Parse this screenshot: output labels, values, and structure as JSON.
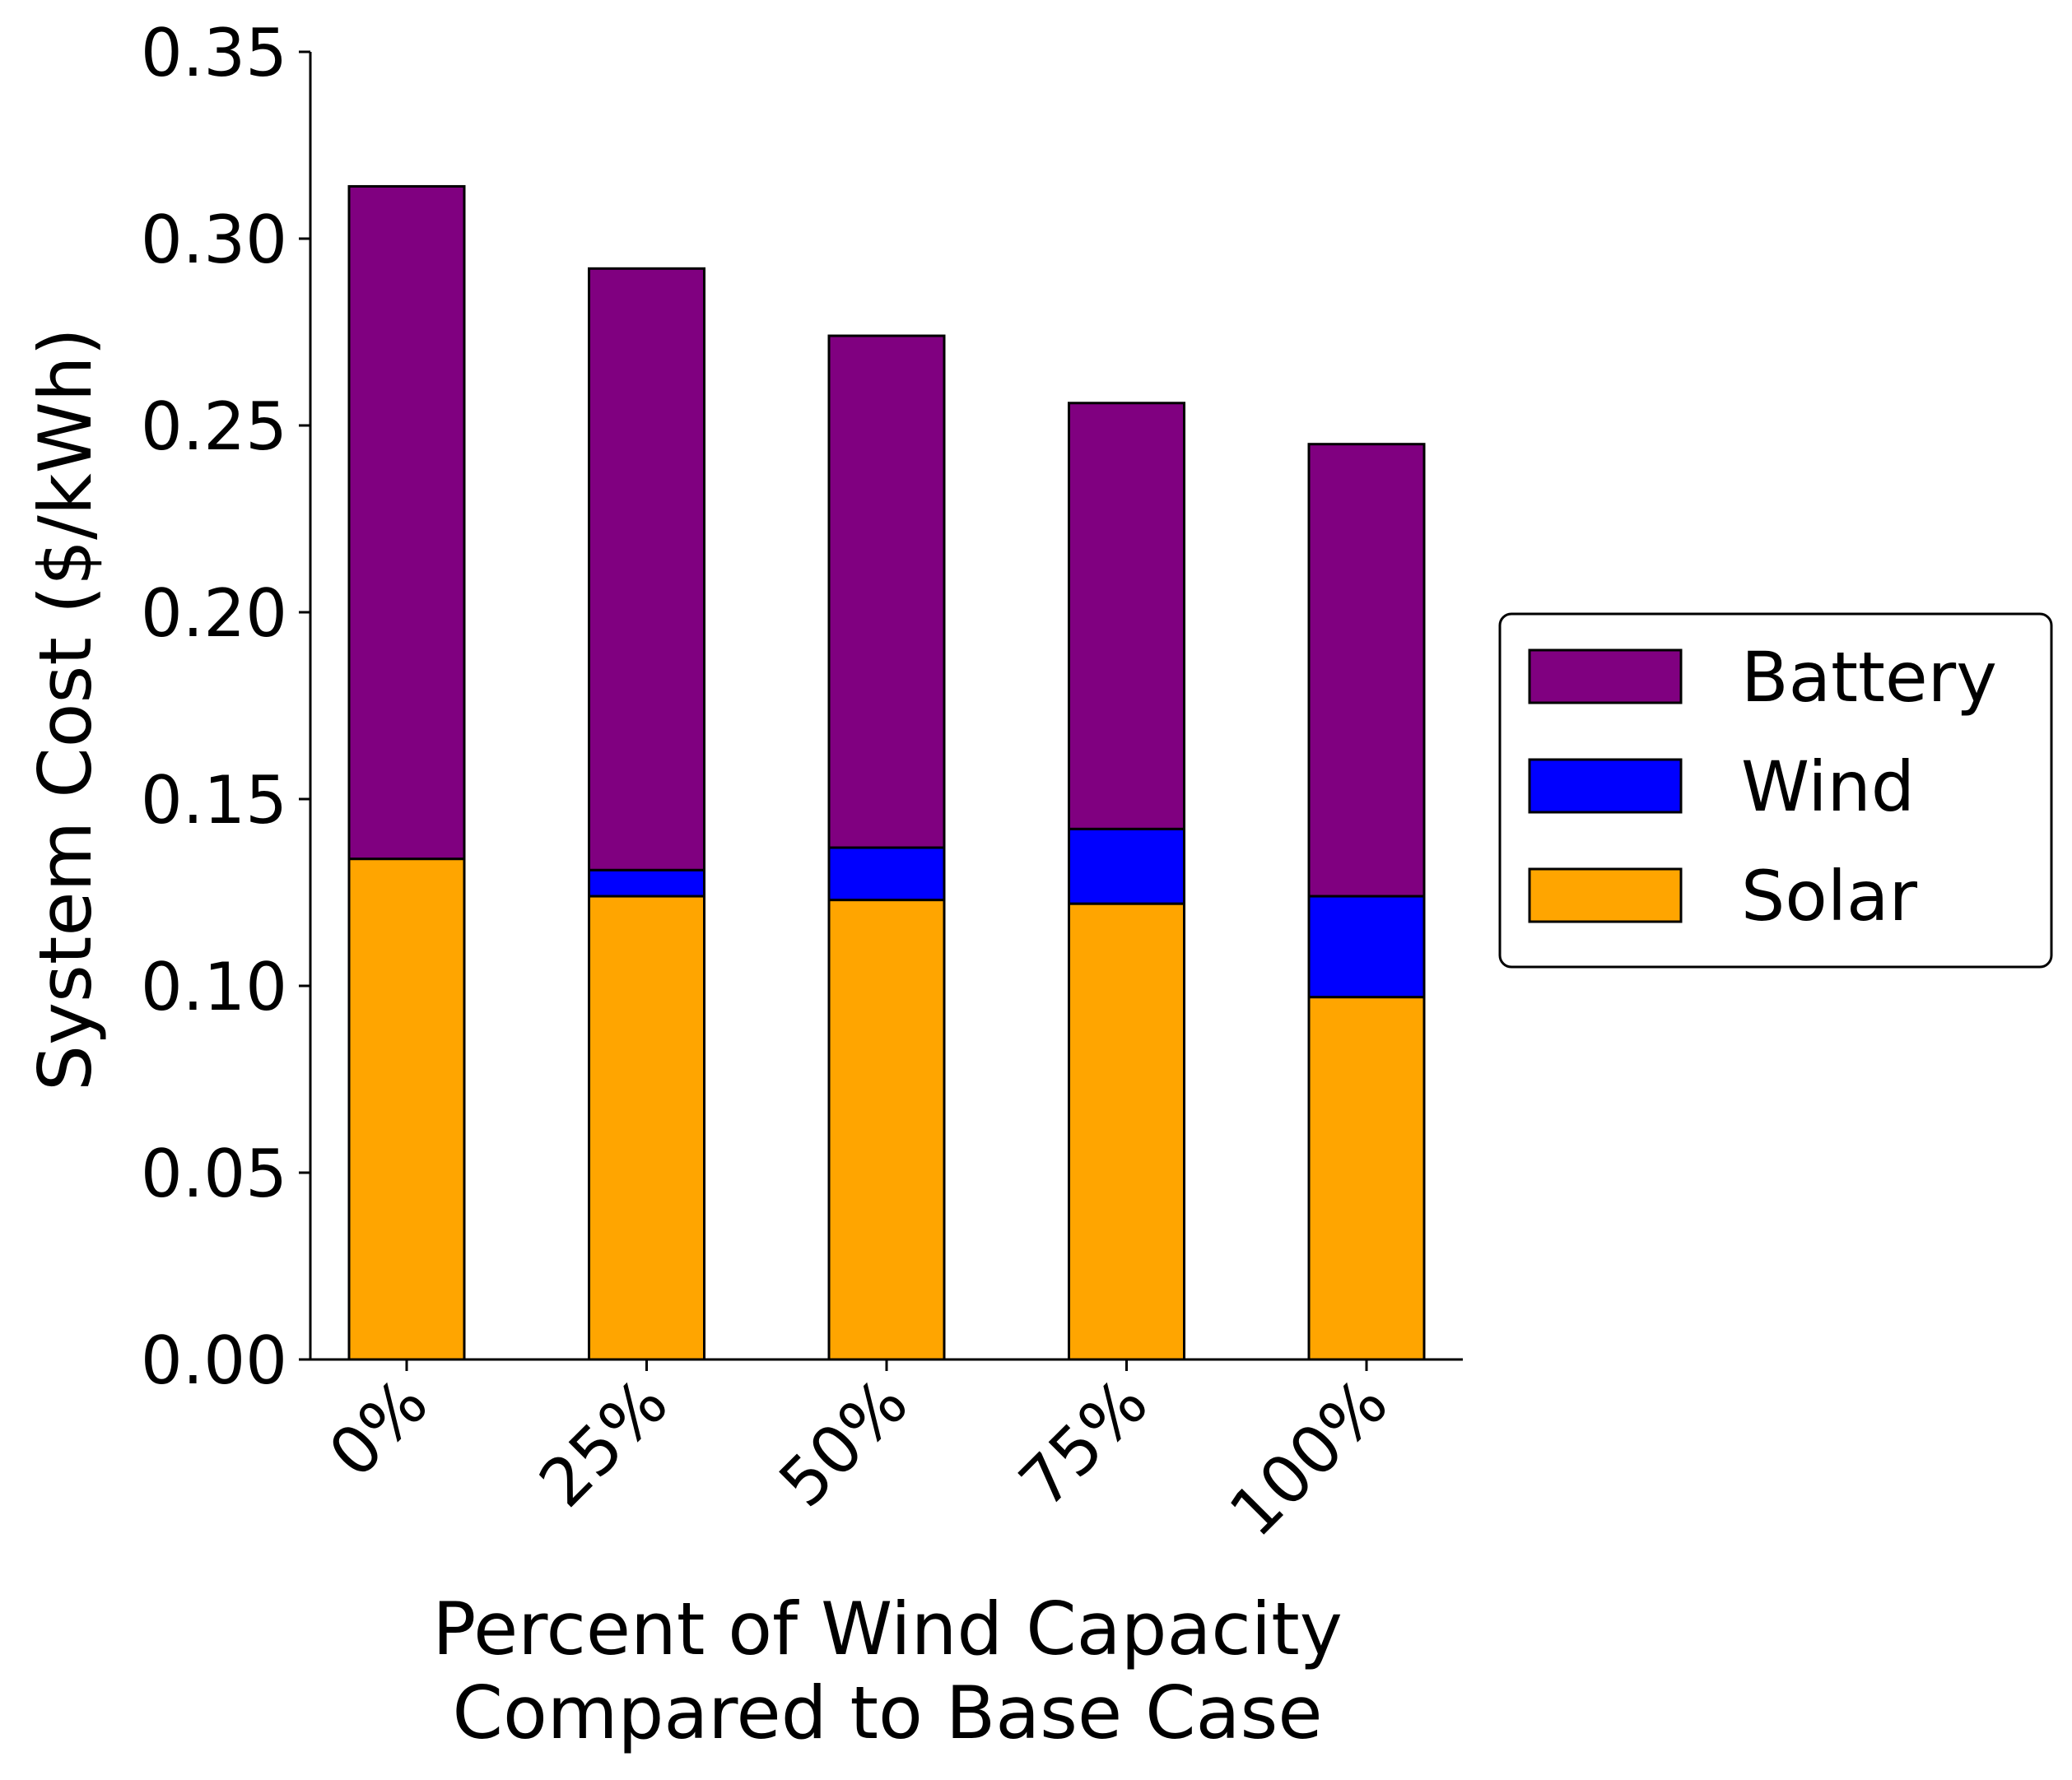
{
  "chart_data": {
    "type": "bar",
    "stacked": true,
    "categories": [
      "0%",
      "25%",
      "50%",
      "75%",
      "100%"
    ],
    "series": [
      {
        "name": "Solar",
        "color": "#ffa500",
        "values": [
          0.134,
          0.124,
          0.123,
          0.122,
          0.097
        ]
      },
      {
        "name": "Wind",
        "color": "#0000ff",
        "values": [
          0.0,
          0.007,
          0.014,
          0.02,
          0.027
        ]
      },
      {
        "name": "Battery",
        "color": "#800080",
        "values": [
          0.18,
          0.161,
          0.137,
          0.114,
          0.121
        ]
      }
    ],
    "xlabel_lines": [
      "Percent of Wind Capacity",
      "Compared to Base Case"
    ],
    "ylabel": "System Cost ($/kWh)",
    "ylim": [
      0,
      0.35
    ],
    "yticks": [
      "0.00",
      "0.05",
      "0.10",
      "0.15",
      "0.20",
      "0.25",
      "0.30",
      "0.35"
    ],
    "legend_order": [
      "Battery",
      "Wind",
      "Solar"
    ],
    "legend_position": "center-right",
    "grid": false
  }
}
